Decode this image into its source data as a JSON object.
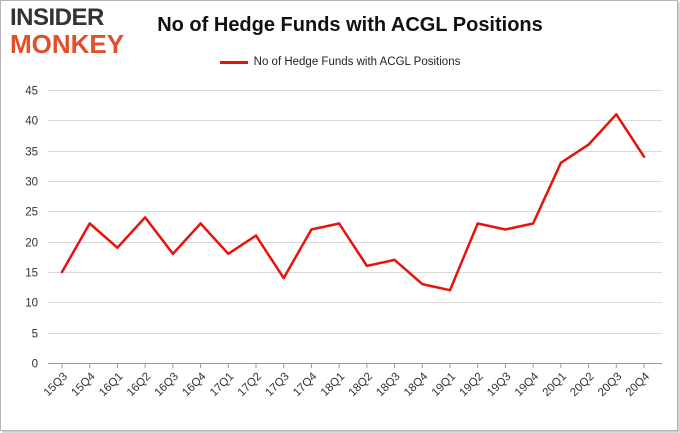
{
  "logo": {
    "line1": "INSIDER",
    "line2": "MONKEY"
  },
  "chart_data": {
    "type": "line",
    "title": "No of Hedge Funds with ACGL Positions",
    "xlabel": "",
    "ylabel": "",
    "categories": [
      "15Q3",
      "15Q4",
      "16Q1",
      "16Q2",
      "16Q3",
      "16Q4",
      "17Q1",
      "17Q2",
      "17Q3",
      "17Q4",
      "18Q1",
      "18Q2",
      "18Q3",
      "18Q4",
      "19Q1",
      "19Q2",
      "19Q3",
      "19Q4",
      "20Q1",
      "20Q2",
      "20Q3",
      "20Q4"
    ],
    "series": [
      {
        "name": "No of Hedge Funds with ACGL Positions",
        "values": [
          15,
          23,
          19,
          24,
          18,
          23,
          18,
          21,
          14,
          22,
          23,
          16,
          17,
          13,
          12,
          23,
          22,
          23,
          33,
          36,
          41,
          34
        ],
        "color": "#e8120c"
      }
    ],
    "ylim": [
      0,
      45
    ],
    "yticks": [
      0,
      5,
      10,
      15,
      20,
      25,
      30,
      35,
      40,
      45
    ],
    "grid": true,
    "legend_position": "top-center"
  }
}
